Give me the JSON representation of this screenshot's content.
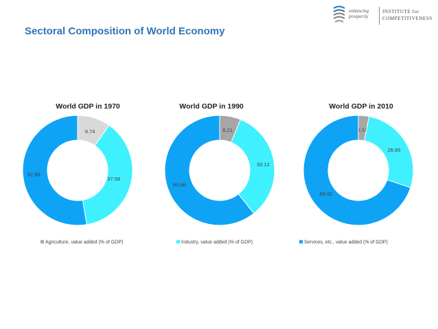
{
  "page": {
    "title": "Sectoral Composition of World Economy"
  },
  "logo": {
    "tagline_line1": "enhancing",
    "tagline_line2": "prosperity",
    "name_line1": "INSTITUTE for",
    "name_line2": "COMPETITIVENESS"
  },
  "chart_data": [
    {
      "type": "pie",
      "variant": "donut",
      "title": "World GDP in 1970",
      "categories": [
        "Agriculture, value added (% of GDP)",
        "Industry, value added (% of GDP)",
        "Services, etc., value added (% of GDP)"
      ],
      "values": [
        9.74,
        37.58,
        52.68
      ],
      "value_labels": [
        "9.74",
        "37.58",
        "52.68"
      ],
      "colors": [
        "#d9d9d9",
        "#3ff0ff",
        "#0fa3f5"
      ],
      "legend": "bottom"
    },
    {
      "type": "pie",
      "variant": "donut",
      "title": "World GDP in 1990",
      "categories": [
        "Agriculture, value added (% of GDP)",
        "Industry, value added (% of GDP)",
        "Services, etc., value added (% of GDP)"
      ],
      "values": [
        6.21,
        33.12,
        60.66
      ],
      "value_labels": [
        "6.21",
        "33.12",
        "60.66"
      ],
      "colors": [
        "#a6a6a6",
        "#3ff0ff",
        "#0fa3f5"
      ],
      "legend": "bottom"
    },
    {
      "type": "pie",
      "variant": "donut",
      "title": "World GDP in 2010",
      "categories": [
        "Agriculture, value added (% of GDP)",
        "Industry, value added (% of GDP)",
        "Services, etc., value added (% of GDP)"
      ],
      "values": [
        3.14,
        26.95,
        69.92
      ],
      "value_labels": [
        "3.14",
        "26.95",
        "69.92"
      ],
      "colors": [
        "#a6a6a6",
        "#3ff0ff",
        "#0fa3f5"
      ],
      "legend": "bottom"
    }
  ],
  "legend": [
    {
      "label": "Agriculture, value added (% of GDP)",
      "color": "#a6a6a6"
    },
    {
      "label": "Industry, value added (% of GDP)",
      "color": "#3ff0ff"
    },
    {
      "label": "Services, etc., value added (% of GDP)",
      "color": "#0fa3f5"
    }
  ]
}
